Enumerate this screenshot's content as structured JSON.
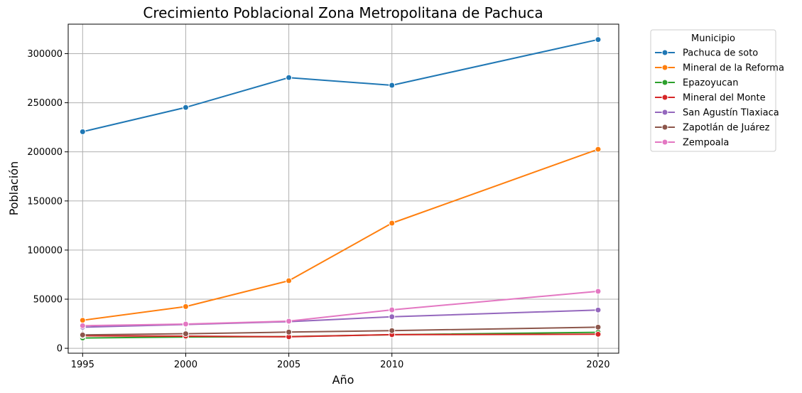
{
  "chart_data": {
    "type": "line",
    "title": "Crecimiento Poblacional Zona Metropolitana de Pachuca",
    "xlabel": "Año",
    "ylabel": "Población",
    "x": [
      1995,
      2000,
      2005,
      2010,
      2020
    ],
    "x_ticks": [
      "1995",
      "2000",
      "2005",
      "2010",
      "2020"
    ],
    "ylim": [
      -5000,
      330000
    ],
    "y_ticks": [
      0,
      50000,
      100000,
      150000,
      200000,
      250000,
      300000
    ],
    "y_tick_labels": [
      "0",
      "50000",
      "100000",
      "150000",
      "200000",
      "250000",
      "300000"
    ],
    "grid": true,
    "legend_title": "Municipio",
    "legend_position": "outside-right-top",
    "marker": "circle",
    "series": [
      {
        "name": "Pachuca de soto",
        "color": "#1f77b4",
        "values": [
          220500,
          245200,
          275600,
          267800,
          314300
        ]
      },
      {
        "name": "Mineral de la Reforma",
        "color": "#ff7f0e",
        "values": [
          28500,
          42500,
          68800,
          127400,
          202600
        ]
      },
      {
        "name": "Epazoyucan",
        "color": "#2ca02c",
        "values": [
          10500,
          11500,
          11900,
          13800,
          16300
        ]
      },
      {
        "name": "Mineral del Monte",
        "color": "#d62728",
        "values": [
          12800,
          12400,
          11700,
          13900,
          14300
        ]
      },
      {
        "name": "San Agustín Tlaxiaca",
        "color": "#9467bd",
        "values": [
          21500,
          24200,
          27100,
          32100,
          39000
        ]
      },
      {
        "name": "Zapotlán de Juárez",
        "color": "#8c564b",
        "values": [
          13600,
          14800,
          16500,
          18000,
          21500
        ]
      },
      {
        "name": "Zempoala",
        "color": "#e377c2",
        "values": [
          23000,
          24700,
          27600,
          39100,
          58000
        ]
      }
    ]
  }
}
